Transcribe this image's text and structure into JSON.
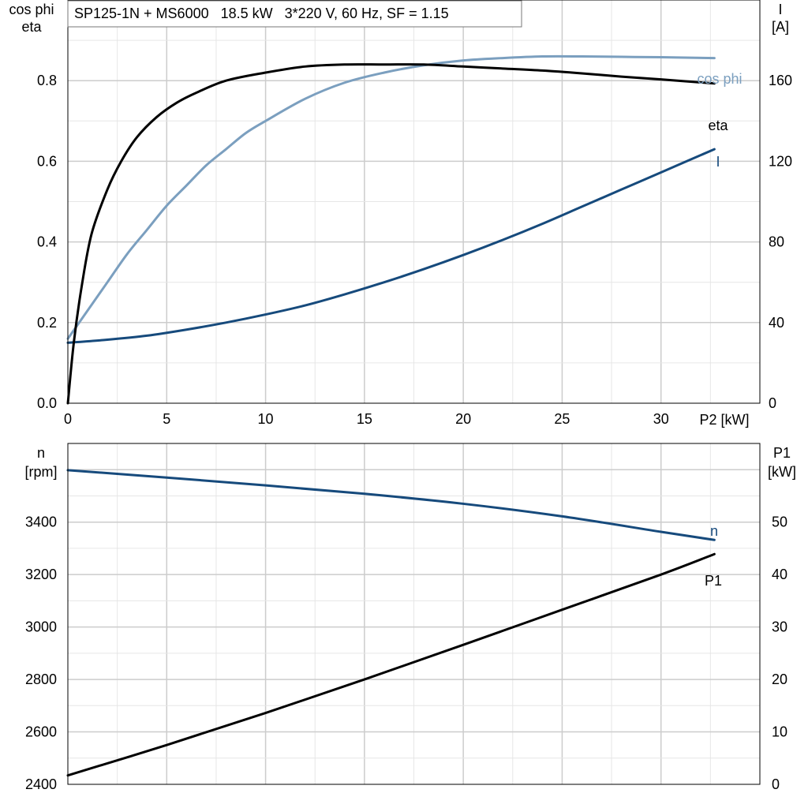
{
  "colors": {
    "eta": "#000000",
    "cos_phi": "#7b9fbf",
    "current": "#164a7c",
    "speed": "#164a7c",
    "p1": "#000000",
    "grid_major": "#cccccc",
    "grid_minor": "#e6e6e6"
  },
  "chart_data": [
    {
      "type": "line",
      "title": "SP125-1N + MS6000   18.5 kW   3*220 V, 60 Hz, SF = 1.15",
      "xlabel": "P2 [kW]",
      "ylabel_left": [
        "cos phi",
        "eta"
      ],
      "ylabel_right": [
        "I",
        "[A]"
      ],
      "xlim": [
        0,
        35
      ],
      "ylim_left": [
        0,
        1.0
      ],
      "ylim_right": [
        0,
        200
      ],
      "x_ticks": [
        "0",
        "5",
        "10",
        "15",
        "20",
        "25",
        "30"
      ],
      "y_left_ticks": [
        "0.0",
        "0.2",
        "0.4",
        "0.6",
        "0.8"
      ],
      "y_right_ticks": [
        "0",
        "40",
        "80",
        "120",
        "160"
      ],
      "grid": true,
      "series": [
        {
          "name": "eta",
          "axis": "left",
          "x": [
            0,
            0.3,
            0.7,
            1.2,
            2,
            2.7,
            3.5,
            4.5,
            5.5,
            6.5,
            8,
            10,
            12,
            14,
            16,
            18,
            20,
            22,
            24,
            26,
            28,
            30,
            32.7
          ],
          "y": [
            0.0,
            0.15,
            0.29,
            0.42,
            0.53,
            0.6,
            0.66,
            0.71,
            0.745,
            0.77,
            0.8,
            0.82,
            0.835,
            0.84,
            0.84,
            0.84,
            0.835,
            0.83,
            0.825,
            0.818,
            0.81,
            0.803,
            0.793
          ]
        },
        {
          "name": "cos phi",
          "axis": "left",
          "x": [
            0,
            1,
            2,
            3,
            4,
            5,
            6,
            7,
            8,
            9,
            10,
            12,
            14,
            16,
            18,
            20,
            22,
            24,
            26,
            28,
            30,
            32.7
          ],
          "y": [
            0.16,
            0.23,
            0.3,
            0.37,
            0.43,
            0.49,
            0.54,
            0.59,
            0.63,
            0.67,
            0.7,
            0.755,
            0.795,
            0.82,
            0.838,
            0.85,
            0.856,
            0.86,
            0.86,
            0.859,
            0.858,
            0.856
          ]
        },
        {
          "name": "I",
          "axis": "right",
          "x": [
            0,
            2,
            4,
            6,
            8,
            10,
            12,
            14,
            16,
            18,
            20,
            22,
            24,
            26,
            28,
            30,
            32.7
          ],
          "y": [
            30,
            31.5,
            33.5,
            36.5,
            40,
            44,
            48.5,
            54,
            60,
            66.5,
            73.5,
            81,
            89,
            97.5,
            106,
            114.5,
            126
          ]
        }
      ]
    },
    {
      "type": "line",
      "xlim": [
        0,
        35
      ],
      "ylabel_left": [
        "n",
        "[rpm]"
      ],
      "ylabel_right": [
        "P1",
        "[kW]"
      ],
      "ylim_left": [
        2400,
        3700
      ],
      "ylim_right": [
        0,
        65
      ],
      "y_left_ticks": [
        "2400",
        "2600",
        "2800",
        "3000",
        "3200",
        "3400"
      ],
      "y_right_ticks": [
        "0",
        "10",
        "20",
        "30",
        "40",
        "50"
      ],
      "grid": true,
      "series": [
        {
          "name": "n",
          "axis": "left",
          "x": [
            0,
            5,
            10,
            15,
            20,
            25,
            30,
            32.7
          ],
          "y": [
            3598,
            3570,
            3540,
            3508,
            3470,
            3422,
            3363,
            3332
          ]
        },
        {
          "name": "P1",
          "axis": "right",
          "x": [
            0,
            5,
            10,
            15,
            20,
            25,
            30,
            32.7
          ],
          "y": [
            1.7,
            7.5,
            13.6,
            20.0,
            26.6,
            33.3,
            40.0,
            43.9
          ]
        }
      ]
    }
  ]
}
